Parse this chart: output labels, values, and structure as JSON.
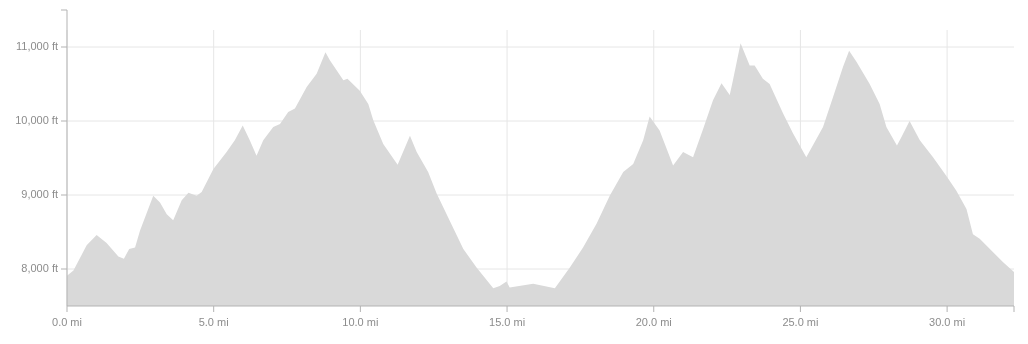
{
  "chart_data": {
    "type": "area",
    "color": "#d9d9d9",
    "x": [
      0,
      0.22,
      0.67,
      1.01,
      1.35,
      1.75,
      1.94,
      2.12,
      2.32,
      2.49,
      2.94,
      3.17,
      3.4,
      3.62,
      3.91,
      4.14,
      4.42,
      4.59,
      4.99,
      5.44,
      5.72,
      5.99,
      6.23,
      6.46,
      6.69,
      7.03,
      7.26,
      7.54,
      7.77,
      8.17,
      8.51,
      8.81,
      8.96,
      9.42,
      9.56,
      9.98,
      10.27,
      10.44,
      10.78,
      11.27,
      11.69,
      11.92,
      12.31,
      12.6,
      13.05,
      13.51,
      13.96,
      14.53,
      14.75,
      14.98,
      15.09,
      15.89,
      16.63,
      17.14,
      17.59,
      18.05,
      18.5,
      18.96,
      19.3,
      19.64,
      19.86,
      20.2,
      20.66,
      21,
      21.34,
      21.68,
      22.02,
      22.31,
      22.59,
      22.7,
      22.96,
      23.27,
      23.44,
      23.72,
      23.95,
      24.41,
      24.75,
      25.2,
      25.77,
      26.11,
      26.45,
      26.66,
      26.91,
      27.36,
      27.7,
      27.93,
      28.29,
      28.44,
      28.72,
      29.07,
      29.52,
      29.97,
      30.31,
      30.66,
      30.88,
      31.11,
      31.91,
      32.28
    ],
    "values": [
      7910,
      7980,
      8320,
      8460,
      8350,
      8170,
      8140,
      8270,
      8290,
      8520,
      8990,
      8900,
      8740,
      8660,
      8930,
      9030,
      8990,
      9040,
      9350,
      9580,
      9740,
      9940,
      9740,
      9530,
      9740,
      9920,
      9960,
      10120,
      10170,
      10460,
      10640,
      10930,
      10820,
      10550,
      10570,
      10410,
      10230,
      10010,
      9690,
      9410,
      9800,
      9580,
      9310,
      9020,
      8650,
      8270,
      8020,
      7740,
      7770,
      7830,
      7750,
      7800,
      7740,
      8020,
      8290,
      8610,
      8990,
      9310,
      9420,
      9740,
      10060,
      9870,
      9400,
      9580,
      9510,
      9890,
      10280,
      10510,
      10350,
      10550,
      11050,
      10750,
      10750,
      10570,
      10500,
      10100,
      9830,
      9510,
      9920,
      10320,
      10730,
      10950,
      10800,
      10500,
      10230,
      9920,
      9670,
      9780,
      10000,
      9740,
      9510,
      9260,
      9060,
      8810,
      8470,
      8410,
      8090,
      7960
    ],
    "xlim": [
      0,
      32.28
    ],
    "ylim": [
      7500,
      11500
    ],
    "xticks": [
      {
        "value": 0,
        "label": "0.0 mi"
      },
      {
        "value": 5,
        "label": "5.0 mi"
      },
      {
        "value": 10,
        "label": "10.0 mi"
      },
      {
        "value": 15,
        "label": "15.0 mi"
      },
      {
        "value": 20,
        "label": "20.0 mi"
      },
      {
        "value": 25,
        "label": "25.0 mi"
      },
      {
        "value": 30,
        "label": "30.0 mi"
      }
    ],
    "yticks": [
      {
        "value": 8000,
        "label": "8,000 ft"
      },
      {
        "value": 9000,
        "label": "9,000 ft"
      },
      {
        "value": 10000,
        "label": "10,000 ft"
      },
      {
        "value": 11000,
        "label": "11,000 ft"
      }
    ],
    "grid": true
  }
}
